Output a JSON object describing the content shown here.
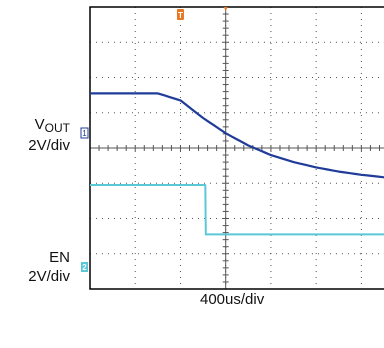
{
  "labels": {
    "ch1_name": "V",
    "ch1_sub": "OUT",
    "ch1_scale": "2V/div",
    "ch2_name": "EN",
    "ch2_scale": "2V/div",
    "timebase": "400us/div",
    "trigger_marker": "T",
    "ch1_marker": "1",
    "ch2_marker": "2"
  },
  "colors": {
    "ch1": "#1f3c99",
    "ch2": "#5bc8d8",
    "trigger": "#e87722",
    "grid": "#555555",
    "frame": "#000000",
    "watermark": "#e04040"
  },
  "chart_data": {
    "type": "line",
    "title": "",
    "xlabel": "400us/div",
    "grid": true,
    "x_unit": "div",
    "series": [
      {
        "name": "VOUT",
        "scale": "2V/div",
        "x": [
          0.0,
          0.5,
          1.0,
          1.5,
          2.0,
          2.5,
          3.0,
          3.5,
          4.0,
          4.5,
          5.0,
          5.5,
          6.0,
          6.5,
          7.0,
          7.5,
          8.0
        ],
        "y": [
          5.55,
          5.55,
          5.55,
          5.55,
          5.35,
          4.85,
          4.42,
          4.07,
          3.8,
          3.6,
          3.45,
          3.33,
          3.24,
          3.17,
          3.12,
          3.08,
          3.05
        ]
      },
      {
        "name": "EN",
        "scale": "2V/div",
        "x": [
          0.0,
          1.0,
          2.0,
          2.55,
          2.56,
          3.0,
          4.0,
          5.0,
          6.0,
          7.0,
          8.0
        ],
        "y": [
          2.95,
          2.95,
          2.95,
          2.95,
          1.55,
          1.55,
          1.55,
          1.55,
          1.55,
          1.55,
          1.55
        ]
      }
    ]
  }
}
